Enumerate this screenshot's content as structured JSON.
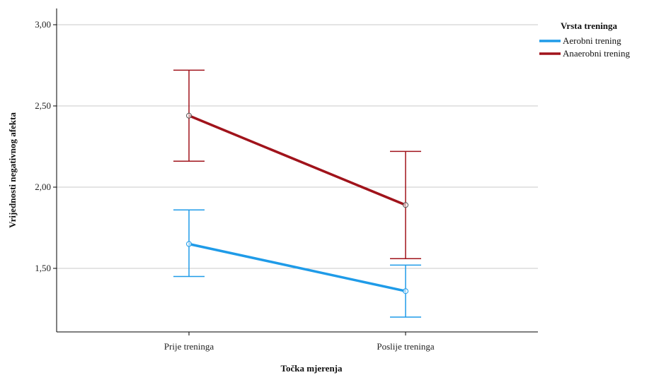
{
  "chart_data": {
    "type": "line",
    "title": "",
    "xlabel": "Točka mjerenja",
    "ylabel": "Vrijednosti negativnog afekta",
    "categories": [
      "Prije treninga",
      "Poslije treninga"
    ],
    "ylim": [
      1.0,
      3.0
    ],
    "yticks": [
      "1,50",
      "2,00",
      "2,50",
      "3,00"
    ],
    "ytick_values": [
      1.5,
      2.0,
      2.5,
      3.0
    ],
    "grid": true,
    "legend": {
      "title": "Vrsta treninga",
      "position": "top-right"
    },
    "series": [
      {
        "name": "Aerobni trening",
        "color": "#1f9be8",
        "values": [
          1.65,
          1.36
        ],
        "error_low": [
          1.45,
          1.2
        ],
        "error_high": [
          1.86,
          1.52
        ]
      },
      {
        "name": "Anaerobni trening",
        "color": "#a0131b",
        "values": [
          2.44,
          1.89
        ],
        "error_low": [
          2.16,
          1.56
        ],
        "error_high": [
          2.72,
          2.22
        ]
      }
    ]
  }
}
